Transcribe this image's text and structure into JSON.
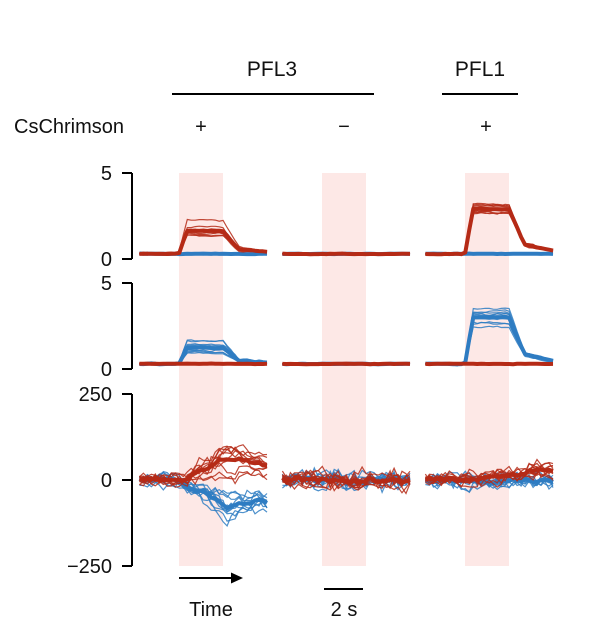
{
  "chart_data": {
    "type": "line",
    "groups": [
      {
        "id": "pfl3",
        "label": "PFL3"
      },
      {
        "id": "pfl1",
        "label": "PFL1"
      }
    ],
    "condition_label": "CsChrimson",
    "conditions": [
      "+",
      "−",
      "+"
    ],
    "columns": [
      {
        "group": "PFL3",
        "cschrimson": "+"
      },
      {
        "group": "PFL3",
        "cschrimson": "−"
      },
      {
        "group": "PFL1",
        "cschrimson": "+"
      }
    ],
    "stimulus": {
      "start_s": 0,
      "end_s": 1,
      "color": "#fde8e6"
    },
    "x": {
      "label": "Time",
      "trace_start_s": -0.9,
      "trace_end_s": 2.0
    },
    "scale_bar": {
      "label": "2 s",
      "seconds": 2
    },
    "series_colors": {
      "red": "#b52a16",
      "blue": "#2e7cc2"
    },
    "rows": [
      {
        "id": "row1",
        "ylim": [
          0,
          5
        ],
        "yticks": [
          {
            "value": 5,
            "label": "5"
          },
          {
            "value": 0,
            "label": "0"
          }
        ],
        "panels": [
          {
            "red": {
              "base": 0.3,
              "peak": 1.3,
              "shape": "plateau",
              "spread": 0.45,
              "noise": 0.05
            },
            "blue": {
              "base": 0.3,
              "peak": 0.0,
              "shape": "flat",
              "spread": 0.05,
              "noise": 0.03
            }
          },
          {
            "red": {
              "base": 0.3,
              "peak": 0.0,
              "shape": "flat",
              "spread": 0.04,
              "noise": 0.03
            },
            "blue": {
              "base": 0.3,
              "peak": 0.0,
              "shape": "flat",
              "spread": 0.04,
              "noise": 0.03
            }
          },
          {
            "red": {
              "base": 0.3,
              "peak": 2.6,
              "shape": "plateau",
              "spread": 0.4,
              "noise": 0.05
            },
            "blue": {
              "base": 0.3,
              "peak": 0.0,
              "shape": "flat",
              "spread": 0.04,
              "noise": 0.03
            }
          }
        ]
      },
      {
        "id": "row2",
        "ylim": [
          0,
          5
        ],
        "yticks": [
          {
            "value": 5,
            "label": "5"
          },
          {
            "value": 0,
            "label": "0"
          }
        ],
        "panels": [
          {
            "red": {
              "base": 0.3,
              "peak": 0.0,
              "shape": "flat",
              "spread": 0.05,
              "noise": 0.03
            },
            "blue": {
              "base": 0.3,
              "peak": 0.9,
              "shape": "plateau",
              "spread": 0.35,
              "noise": 0.05
            }
          },
          {
            "red": {
              "base": 0.3,
              "peak": 0.0,
              "shape": "flat",
              "spread": 0.04,
              "noise": 0.03
            },
            "blue": {
              "base": 0.3,
              "peak": 0.0,
              "shape": "flat",
              "spread": 0.04,
              "noise": 0.03
            }
          },
          {
            "red": {
              "base": 0.3,
              "peak": 0.0,
              "shape": "flat",
              "spread": 0.04,
              "noise": 0.03
            },
            "blue": {
              "base": 0.3,
              "peak": 2.6,
              "shape": "plateau",
              "spread": 0.45,
              "noise": 0.05
            }
          }
        ]
      },
      {
        "id": "row3",
        "ylim": [
          -250,
          250
        ],
        "yticks": [
          {
            "value": 250,
            "label": "250"
          },
          {
            "value": 0,
            "label": "0"
          },
          {
            "value": -250,
            "label": "−250"
          }
        ],
        "panels": [
          {
            "red": {
              "base": 0,
              "peak": 70,
              "shape": "ramp",
              "spread": 45,
              "noise": 14
            },
            "blue": {
              "base": 0,
              "peak": -70,
              "shape": "ramp",
              "spread": 30,
              "noise": 14
            }
          },
          {
            "red": {
              "base": 0,
              "peak": 0,
              "shape": "flat",
              "spread": 22,
              "noise": 16
            },
            "blue": {
              "base": 0,
              "peak": 0,
              "shape": "flat",
              "spread": 20,
              "noise": 16
            }
          },
          {
            "red": {
              "base": 0,
              "peak": 25,
              "shape": "late",
              "spread": 25,
              "noise": 14
            },
            "blue": {
              "base": 0,
              "peak": -5,
              "shape": "flat",
              "spread": 18,
              "noise": 14
            }
          }
        ]
      }
    ]
  }
}
